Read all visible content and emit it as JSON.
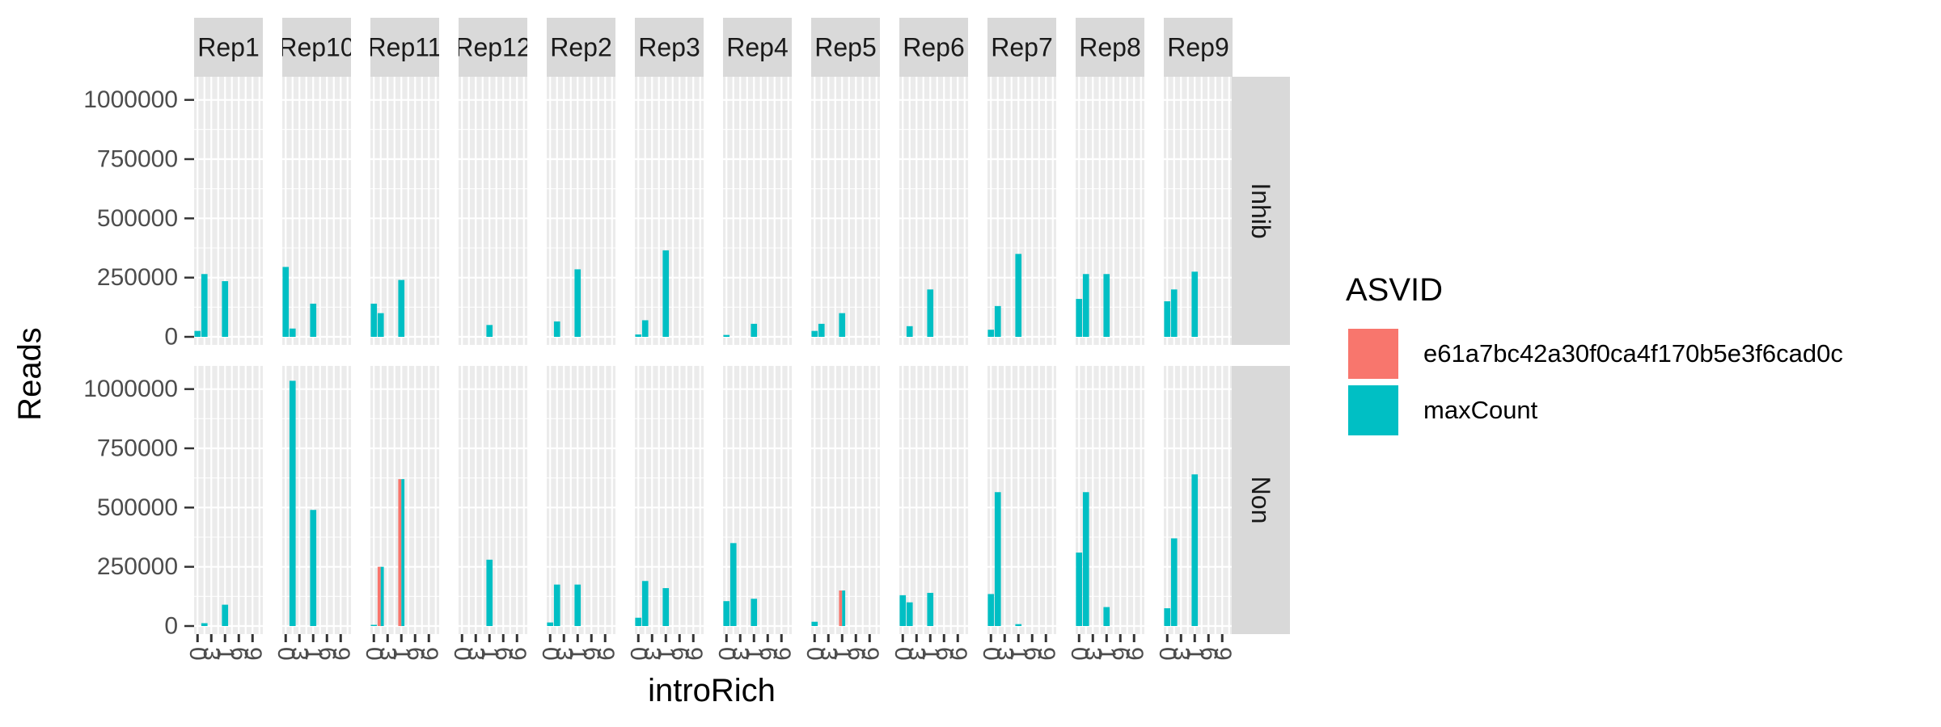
{
  "chart_data": {
    "type": "bar",
    "title": "",
    "xlabel": "introRich",
    "ylabel": "Reads",
    "ylim": [
      0,
      1050000
    ],
    "y_ticks": [
      "0",
      "250000",
      "500000",
      "750000",
      "1000000"
    ],
    "y_tick_values": [
      0,
      250000,
      500000,
      750000,
      1000000
    ],
    "x_tick_label_fragments": [
      "0",
      "3",
      "1",
      "6",
      "9"
    ],
    "x_tick_positions": [
      1,
      3,
      5,
      7,
      9
    ],
    "x_categories": [
      1,
      2,
      3,
      4,
      5,
      6,
      7,
      8,
      9,
      10
    ],
    "facet_columns": [
      "Rep1",
      "Rep10",
      "Rep11",
      "Rep12",
      "Rep2",
      "Rep3",
      "Rep4",
      "Rep5",
      "Rep6",
      "Rep7",
      "Rep8",
      "Rep9"
    ],
    "facet_rows": [
      "Inhib",
      "Non"
    ],
    "legend": {
      "title": "ASVID",
      "placement": "right",
      "entries": [
        {
          "label": "e61a7bc42a30f0ca4f170b5e3f6cad0c",
          "color": "#F8766D"
        },
        {
          "label": "maxCount",
          "color": "#00BFC4"
        }
      ]
    },
    "colors": {
      "panel_bg": "#EBEBEB",
      "grid": "#FFFFFF",
      "strip_bg": "#D9D9D9",
      "asv": "#F8766D",
      "max": "#00BFC4"
    },
    "panels": {
      "Inhib": [
        {
          "maxCount": [
            25000,
            265000,
            0,
            0,
            235000,
            0,
            0,
            0,
            0,
            0
          ],
          "asv": [
            0,
            0,
            0,
            0,
            0,
            0,
            0,
            0,
            0,
            0
          ]
        },
        {
          "maxCount": [
            295000,
            35000,
            0,
            0,
            140000,
            0,
            0,
            0,
            0,
            0
          ],
          "asv": [
            0,
            0,
            0,
            0,
            0,
            0,
            0,
            0,
            0,
            0
          ]
        },
        {
          "maxCount": [
            140000,
            100000,
            0,
            0,
            240000,
            0,
            0,
            0,
            0,
            0
          ],
          "asv": [
            0,
            0,
            0,
            0,
            0,
            0,
            0,
            0,
            0,
            0
          ]
        },
        {
          "maxCount": [
            0,
            0,
            0,
            0,
            50000,
            0,
            0,
            0,
            0,
            0
          ],
          "asv": [
            0,
            0,
            0,
            0,
            0,
            0,
            0,
            0,
            0,
            0
          ]
        },
        {
          "maxCount": [
            0,
            65000,
            0,
            0,
            285000,
            0,
            0,
            0,
            0,
            0
          ],
          "asv": [
            0,
            0,
            0,
            0,
            0,
            0,
            0,
            0,
            0,
            0
          ]
        },
        {
          "maxCount": [
            10000,
            70000,
            0,
            0,
            365000,
            0,
            0,
            0,
            0,
            0
          ],
          "asv": [
            0,
            0,
            0,
            0,
            0,
            0,
            0,
            0,
            0,
            0
          ]
        },
        {
          "maxCount": [
            8000,
            0,
            0,
            0,
            55000,
            0,
            0,
            0,
            0,
            0
          ],
          "asv": [
            0,
            0,
            0,
            0,
            0,
            0,
            0,
            0,
            0,
            0
          ]
        },
        {
          "maxCount": [
            25000,
            55000,
            0,
            0,
            100000,
            0,
            0,
            0,
            0,
            0
          ],
          "asv": [
            0,
            0,
            0,
            0,
            0,
            0,
            0,
            0,
            0,
            0
          ]
        },
        {
          "maxCount": [
            0,
            45000,
            0,
            0,
            200000,
            0,
            0,
            0,
            0,
            0
          ],
          "asv": [
            0,
            0,
            0,
            0,
            0,
            0,
            0,
            0,
            0,
            0
          ]
        },
        {
          "maxCount": [
            30000,
            130000,
            0,
            0,
            350000,
            0,
            0,
            0,
            0,
            0
          ],
          "asv": [
            0,
            0,
            0,
            0,
            0,
            0,
            0,
            0,
            0,
            0
          ]
        },
        {
          "maxCount": [
            160000,
            265000,
            0,
            0,
            265000,
            0,
            0,
            0,
            0,
            0
          ],
          "asv": [
            0,
            0,
            0,
            0,
            0,
            0,
            0,
            0,
            0,
            0
          ]
        },
        {
          "maxCount": [
            150000,
            200000,
            0,
            0,
            275000,
            0,
            0,
            0,
            0,
            0
          ],
          "asv": [
            0,
            0,
            0,
            0,
            0,
            0,
            0,
            0,
            0,
            0
          ]
        }
      ],
      "Non": [
        {
          "maxCount": [
            0,
            12000,
            0,
            0,
            90000,
            0,
            0,
            0,
            0,
            0
          ],
          "asv": [
            0,
            0,
            0,
            0,
            0,
            0,
            0,
            0,
            0,
            0
          ]
        },
        {
          "maxCount": [
            0,
            1035000,
            0,
            0,
            490000,
            0,
            0,
            0,
            0,
            0
          ],
          "asv": [
            0,
            0,
            0,
            0,
            0,
            0,
            0,
            0,
            0,
            0
          ]
        },
        {
          "maxCount": [
            5000,
            250000,
            0,
            0,
            620000,
            0,
            0,
            0,
            0,
            0
          ],
          "asv": [
            0,
            250000,
            0,
            0,
            620000,
            0,
            0,
            0,
            0,
            0
          ]
        },
        {
          "maxCount": [
            0,
            0,
            0,
            0,
            280000,
            0,
            0,
            0,
            0,
            0
          ],
          "asv": [
            0,
            0,
            0,
            0,
            0,
            0,
            0,
            0,
            0,
            0
          ]
        },
        {
          "maxCount": [
            15000,
            175000,
            0,
            0,
            175000,
            0,
            0,
            0,
            0,
            0
          ],
          "asv": [
            0,
            0,
            0,
            0,
            0,
            0,
            0,
            0,
            0,
            0
          ]
        },
        {
          "maxCount": [
            35000,
            190000,
            0,
            0,
            160000,
            0,
            0,
            0,
            0,
            0
          ],
          "asv": [
            0,
            0,
            0,
            0,
            0,
            0,
            0,
            0,
            0,
            0
          ]
        },
        {
          "maxCount": [
            105000,
            350000,
            0,
            0,
            115000,
            0,
            0,
            0,
            0,
            0
          ],
          "asv": [
            0,
            0,
            0,
            0,
            0,
            0,
            0,
            0,
            0,
            0
          ]
        },
        {
          "maxCount": [
            18000,
            0,
            0,
            0,
            150000,
            0,
            0,
            0,
            0,
            0
          ],
          "asv": [
            0,
            0,
            0,
            0,
            150000,
            0,
            0,
            0,
            0,
            0
          ]
        },
        {
          "maxCount": [
            130000,
            100000,
            0,
            0,
            140000,
            0,
            0,
            0,
            0,
            0
          ],
          "asv": [
            0,
            0,
            0,
            0,
            0,
            0,
            0,
            0,
            0,
            0
          ]
        },
        {
          "maxCount": [
            135000,
            565000,
            0,
            0,
            8000,
            0,
            0,
            0,
            0,
            0
          ],
          "asv": [
            0,
            0,
            0,
            0,
            0,
            0,
            0,
            0,
            0,
            0
          ]
        },
        {
          "maxCount": [
            310000,
            565000,
            0,
            0,
            80000,
            0,
            0,
            0,
            0,
            0
          ],
          "asv": [
            0,
            0,
            0,
            0,
            0,
            0,
            0,
            0,
            0,
            0
          ]
        },
        {
          "maxCount": [
            75000,
            370000,
            0,
            0,
            640000,
            0,
            0,
            0,
            0,
            0
          ],
          "asv": [
            0,
            0,
            0,
            0,
            0,
            0,
            0,
            0,
            0,
            0
          ]
        }
      ]
    }
  }
}
